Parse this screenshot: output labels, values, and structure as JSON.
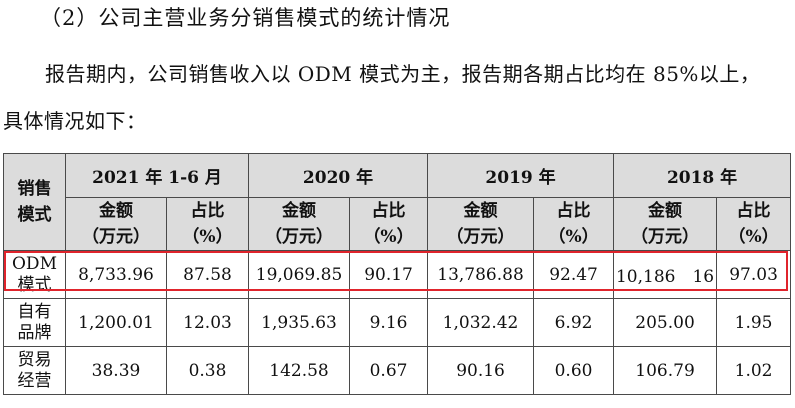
{
  "heading": "（2）公司主营业务分销售模式的统计情况",
  "paragraph_line1": "报告期内，公司销售收入以 ODM 模式为主，报告期各期占比均在 85%以上，",
  "paragraph_line2": "具体情况如下：",
  "table": {
    "corner_header": [
      "销售",
      "模式"
    ],
    "periods": [
      "2021 年 1-6 月",
      "2020 年",
      "2019 年",
      "2018 年"
    ],
    "amount_header": [
      "金额",
      "（万元）"
    ],
    "ratio_header": [
      "占比",
      "（%）"
    ],
    "rows": [
      {
        "mode": [
          "ODM",
          "模式"
        ],
        "values": [
          "8,733.96",
          "87.58",
          "19,069.85",
          "90.17",
          "13,786.88",
          "92.47",
          "10,186　16",
          "97.03"
        ]
      },
      {
        "mode": [
          "自有",
          "品牌"
        ],
        "values": [
          "1,200.01",
          "12.03",
          "1,935.63",
          "9.16",
          "1,032.42",
          "6.92",
          "205.00",
          "1.95"
        ]
      },
      {
        "mode": [
          "贸易",
          "经营"
        ],
        "values": [
          "38.39",
          "0.38",
          "142.58",
          "0.67",
          "90.16",
          "0.60",
          "106.79",
          "1.02"
        ]
      }
    ]
  },
  "highlight_color": "#e0242c",
  "header_bg": "#dcdcdc"
}
